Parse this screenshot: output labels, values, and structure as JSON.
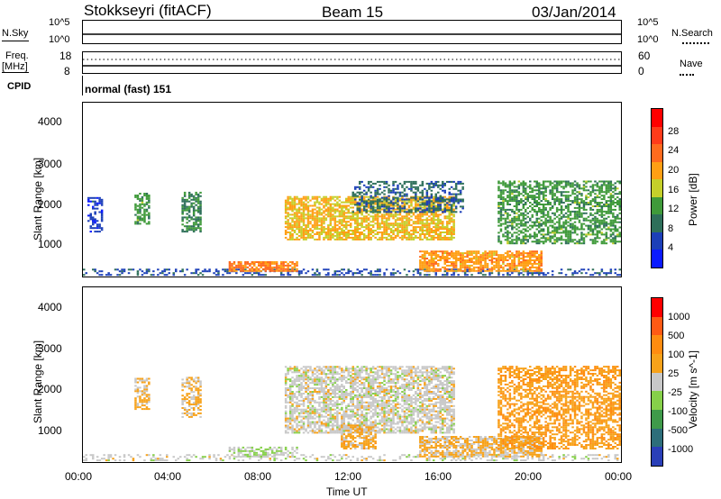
{
  "header": {
    "station": "Stokkseyri (fitACF)",
    "beam": "Beam 15",
    "date": "03/Jan/2014"
  },
  "top_panels": {
    "nsky_label": "N.Sky",
    "nsky_ticks": [
      "10^5",
      "10^0"
    ],
    "nsky_right_ticks": [
      "10^5",
      "10^0"
    ],
    "nsearch_label": "N.Search",
    "freq_label_1": "Freq.",
    "freq_label_2": "[MHz]",
    "freq_ticks": [
      "18",
      "8"
    ],
    "nave_ticks": [
      "60",
      "0"
    ],
    "nave_label": "Nave",
    "cpid_label": "CPID",
    "cpid_value": "normal (fast) 151"
  },
  "axes": {
    "ylabel": "Slant Range [km]",
    "xlabel": "Time UT",
    "y_ticks": [
      "4000",
      "3000",
      "2000",
      "1000"
    ],
    "x_ticks": [
      "00:00",
      "04:00",
      "08:00",
      "12:00",
      "16:00",
      "20:00",
      "00:00"
    ]
  },
  "power_colorbar": {
    "label": "Power [dB]",
    "ticks": [
      "28",
      "24",
      "20",
      "16",
      "12",
      "8",
      "4"
    ],
    "colors": [
      "#0a1aff",
      "#1c3fb8",
      "#2e6f5a",
      "#3f9a3a",
      "#c5cf2a",
      "#ff9f14",
      "#ff6b1e",
      "#ff3b1a",
      "#ff0000"
    ]
  },
  "velocity_colorbar": {
    "label": "Velocity [m s^-1]",
    "ticks": [
      "1000",
      "500",
      "100",
      "25",
      "-25",
      "-100",
      "-500",
      "-1000"
    ],
    "colors": [
      "#2a3fb8",
      "#2d6e7a",
      "#3f9a4a",
      "#86d04a",
      "#c8c8c8",
      "#f7a21a",
      "#ff8c10",
      "#ff5a14",
      "#ff0000"
    ]
  },
  "chart_data": [
    {
      "type": "heatmap",
      "title": "Power",
      "xlabel": "Time UT",
      "ylabel": "Slant Range [km]",
      "xlim": [
        0,
        24
      ],
      "ylim": [
        180,
        4600
      ],
      "colorbar_label": "Power [dB]",
      "colorbar_range": [
        0,
        32
      ],
      "regions": [
        {
          "t": [
            0.0,
            24.0
          ],
          "r": [
            200,
            380
          ],
          "value": 6,
          "density": 0.35
        },
        {
          "t": [
            0.2,
            0.8
          ],
          "r": [
            1300,
            2200
          ],
          "value": 5,
          "density": 0.5
        },
        {
          "t": [
            2.3,
            3.0
          ],
          "r": [
            1500,
            2300
          ],
          "value": 12,
          "density": 0.6
        },
        {
          "t": [
            4.4,
            5.2
          ],
          "r": [
            1300,
            2300
          ],
          "value": 10,
          "density": 0.6
        },
        {
          "t": [
            6.5,
            9.5
          ],
          "r": [
            300,
            550
          ],
          "value": 22,
          "density": 0.8
        },
        {
          "t": [
            9.0,
            16.5
          ],
          "r": [
            1100,
            2200
          ],
          "value": 18,
          "density": 0.75
        },
        {
          "t": [
            12.0,
            17.0
          ],
          "r": [
            1800,
            2600
          ],
          "value": 8,
          "density": 0.5
        },
        {
          "t": [
            15.0,
            20.5
          ],
          "r": [
            300,
            800
          ],
          "value": 20,
          "density": 0.75
        },
        {
          "t": [
            18.5,
            24.0
          ],
          "r": [
            1000,
            2600
          ],
          "value": 12,
          "density": 0.6
        }
      ]
    },
    {
      "type": "heatmap",
      "title": "Velocity",
      "xlabel": "Time UT",
      "ylabel": "Slant Range [km]",
      "xlim": [
        0,
        24
      ],
      "ylim": [
        180,
        4600
      ],
      "colorbar_label": "Velocity [m s^-1]",
      "colorbar_range": [
        -1000,
        1000
      ],
      "regions": [
        {
          "t": [
            0.0,
            24.0
          ],
          "r": [
            200,
            380
          ],
          "value": 10,
          "density": 0.35
        },
        {
          "t": [
            2.3,
            3.0
          ],
          "r": [
            1500,
            2300
          ],
          "value": -150,
          "density": 0.6
        },
        {
          "t": [
            4.4,
            5.2
          ],
          "r": [
            1300,
            2300
          ],
          "value": -150,
          "density": 0.6
        },
        {
          "t": [
            6.5,
            9.5
          ],
          "r": [
            300,
            550
          ],
          "value": 60,
          "density": 0.6
        },
        {
          "t": [
            9.0,
            16.5
          ],
          "r": [
            900,
            2600
          ],
          "value": 0,
          "density": 0.7
        },
        {
          "t": [
            11.5,
            13.0
          ],
          "r": [
            500,
            1100
          ],
          "value": -200,
          "density": 0.7
        },
        {
          "t": [
            15.0,
            20.5
          ],
          "r": [
            300,
            800
          ],
          "value": -150,
          "density": 0.75
        },
        {
          "t": [
            18.5,
            24.0
          ],
          "r": [
            500,
            2600
          ],
          "value": -300,
          "density": 0.6
        }
      ]
    }
  ]
}
